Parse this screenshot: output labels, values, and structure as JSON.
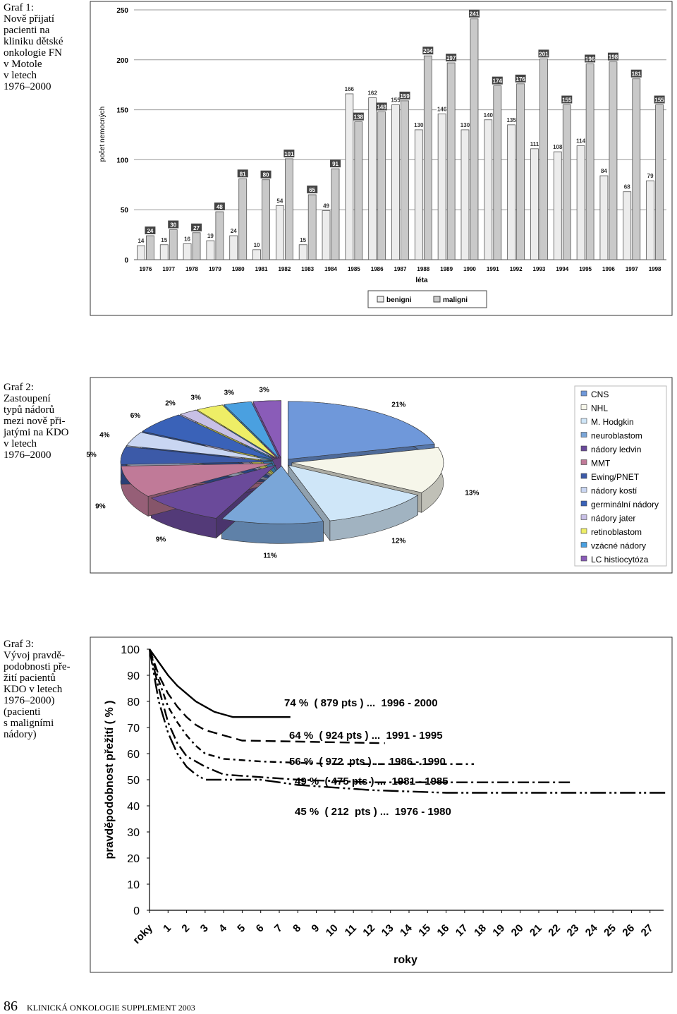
{
  "captions": [
    {
      "lines": [
        "Graf 1:",
        "Nově přijatí",
        "pacienti na",
        "kliniku dětské",
        "onkologie  FN",
        "v Motole",
        "v letech",
        "1976–2000"
      ]
    },
    {
      "lines": [
        "Graf 2:",
        "Zastoupení",
        "typů nádorů",
        "mezi nově při-",
        "jatými na KDO",
        "v letech",
        "1976–2000"
      ]
    },
    {
      "lines": [
        "Graf 3:",
        "Vývoj pravdě-",
        "podobnosti pře-",
        "žití pacientů",
        "KDO v letech",
        "1976–2000)",
        "(pacienti",
        "s maligními",
        "nádory)"
      ]
    }
  ],
  "footer": {
    "page_number": "86",
    "journal": "KLINICKÁ ONKOLOGIE  SUPPLEMENT 2003"
  },
  "chart_data": [
    {
      "type": "bar",
      "y_label": "počet nemocných",
      "x_label": "léta",
      "categories": [
        "1976",
        "1977",
        "1978",
        "1979",
        "1980",
        "1981",
        "1982",
        "1983",
        "1984",
        "1985",
        "1986",
        "1987",
        "1988",
        "1989",
        "1990",
        "1991",
        "1992",
        "1993",
        "1994",
        "1995",
        "1996",
        "1997",
        "1998"
      ],
      "series": [
        {
          "name": "benigni",
          "color": "#ececec",
          "values": [
            14,
            15,
            16,
            19,
            24,
            10,
            54,
            15,
            49,
            166,
            162,
            155,
            130,
            146,
            130,
            140,
            135,
            111,
            108,
            114,
            84,
            68,
            79
          ]
        },
        {
          "name": "maligni",
          "color": "#c9c9c9",
          "values": [
            24,
            30,
            27,
            48,
            81,
            80,
            101,
            65,
            91,
            138,
            148,
            159,
            204,
            197,
            241,
            174,
            176,
            201,
            155,
            196,
            198,
            181,
            155
          ]
        }
      ],
      "ylim": [
        0,
        250
      ],
      "yticks": [
        0,
        50,
        100,
        150,
        200,
        250
      ],
      "grid": true,
      "legend": "bottom"
    },
    {
      "type": "pie",
      "categories": [
        "CNS",
        "NHL",
        "M. Hodgkin",
        "neuroblastom",
        "nádory ledvin",
        "MMT",
        "Ewing/PNET",
        "nádory kostí",
        "germinální nádory",
        "nádory jater",
        "retinoblastom",
        "vzácné nádory",
        "LC histiocytóza"
      ],
      "values": [
        21,
        13,
        12,
        11,
        9,
        9,
        5,
        4,
        6,
        2,
        3,
        3,
        3
      ],
      "value_labels": [
        "21%",
        "13%",
        "12%",
        "11%",
        "9%",
        "9%",
        "5%",
        "4%",
        "6%",
        "2%",
        "3%",
        "3%",
        "3%"
      ],
      "colors": [
        "#6f98da",
        "#f6f6ea",
        "#cfe6f8",
        "#7aa6d8",
        "#6a4a9a",
        "#c07a98",
        "#3c5aa8",
        "#c9d6f2",
        "#3a62b8",
        "#c8c0e6",
        "#eeee66",
        "#4aa0e0",
        "#8a5cb8"
      ],
      "legend": "right",
      "exploded": true,
      "three_d": true
    },
    {
      "type": "line",
      "y_label": "pravděpodobnost přežití ( % )",
      "x_label": "roky",
      "xlim": [
        0,
        28
      ],
      "ylim": [
        0,
        100
      ],
      "xticks": [
        {
          "value": 0,
          "label": "roky"
        },
        1,
        2,
        3,
        4,
        5,
        6,
        7,
        8,
        9,
        10,
        11,
        12,
        13,
        14,
        15,
        16,
        17,
        18,
        19,
        20,
        21,
        22,
        23,
        24,
        25,
        26,
        27
      ],
      "yticks": [
        0,
        10,
        20,
        30,
        40,
        50,
        60,
        70,
        80,
        90,
        100
      ],
      "series": [
        {
          "name": "74 %  ( 879 pts ) ...  1996 - 2000",
          "color": "#000",
          "line_style": "solid",
          "x": [
            0,
            0.5,
            1,
            1.5,
            2,
            2.5,
            3,
            3.5,
            4,
            4.5,
            7.6
          ],
          "values": [
            100,
            95,
            90,
            86,
            83,
            80,
            78,
            76,
            75,
            74,
            74
          ]
        },
        {
          "name": "64 %  ( 924 pts ) ...  1991 - 1995",
          "color": "#000",
          "line_style": "dashed",
          "x": [
            0,
            0.5,
            1,
            1.5,
            2,
            2.5,
            3,
            4,
            5,
            12.7
          ],
          "values": [
            100,
            90,
            83,
            78,
            74,
            71,
            69,
            67,
            65,
            64
          ]
        },
        {
          "name": "56 %  ( 972  pts ) ...  1986 - 1990",
          "color": "#000",
          "line_style": "dash-dot",
          "x": [
            0,
            0.5,
            1,
            1.5,
            2,
            2.5,
            3,
            4,
            6,
            10,
            17.5
          ],
          "values": [
            100,
            88,
            78,
            72,
            67,
            63,
            60,
            58,
            57,
            56,
            56
          ]
        },
        {
          "name": "49 %  ( 475 pts ) ...  1981 - 1985",
          "color": "#000",
          "line_style": "long-dash-dot",
          "x": [
            0,
            0.5,
            1,
            1.5,
            2,
            3,
            4,
            6,
            8,
            12,
            22.8
          ],
          "values": [
            100,
            85,
            72,
            64,
            59,
            55,
            52,
            51,
            50,
            49,
            49
          ]
        },
        {
          "name": "45 %  ( 212  pts ) ...  1976 - 1980",
          "color": "#000",
          "line_style": "long-dash-dot-dot",
          "x": [
            0,
            0.5,
            1,
            1.5,
            2,
            2.5,
            3,
            6,
            8,
            12,
            16,
            27.9
          ],
          "values": [
            100,
            80,
            68,
            60,
            55,
            52,
            50,
            50,
            48,
            46,
            45,
            45
          ]
        }
      ]
    }
  ]
}
